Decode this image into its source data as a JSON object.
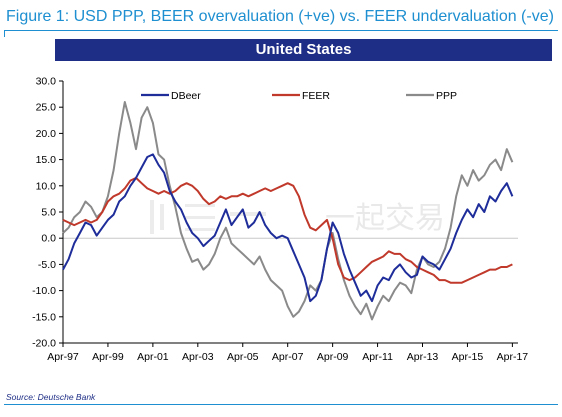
{
  "figure_title": "Figure 1: USD PPP, BEER overvaluation (+ve) vs. FEER undervaluation (-ve)",
  "source": "Source: Deutsche Bank",
  "chart_data": {
    "type": "line",
    "title": "United States",
    "xlabel": "",
    "ylabel": "",
    "ylim": [
      -20,
      30
    ],
    "xlim": [
      1997.25,
      2017.5
    ],
    "yticks": [
      -20.0,
      -15.0,
      -10.0,
      -5.0,
      0.0,
      5.0,
      10.0,
      15.0,
      20.0,
      25.0,
      30.0
    ],
    "ytick_labels": [
      "-20.0",
      "-15.0",
      "-10.0",
      "-5.0",
      "0.0",
      "5.0",
      "10.0",
      "15.0",
      "20.0",
      "25.0",
      "30.0"
    ],
    "xticks": [
      1997.25,
      1999.25,
      2001.25,
      2003.25,
      2005.25,
      2007.25,
      2009.25,
      2011.25,
      2013.25,
      2015.25,
      2017.25
    ],
    "xtick_labels": [
      "Apr-97",
      "Apr-99",
      "Apr-01",
      "Apr-03",
      "Apr-05",
      "Apr-07",
      "Apr-09",
      "Apr-11",
      "Apr-13",
      "Apr-15",
      "Apr-17"
    ],
    "legend_position": "top",
    "colors": {
      "DBeer": "#1e2d9a",
      "FEER": "#c0392b",
      "PPP": "#8a8a8a"
    },
    "series": [
      {
        "name": "DBeer",
        "x": [
          1997.25,
          1997.5,
          1997.75,
          1998.0,
          1998.25,
          1998.5,
          1998.75,
          1999.0,
          1999.25,
          1999.5,
          1999.75,
          2000.0,
          2000.25,
          2000.5,
          2000.75,
          2001.0,
          2001.25,
          2001.5,
          2001.75,
          2002.0,
          2002.25,
          2002.5,
          2002.75,
          2003.0,
          2003.25,
          2003.5,
          2003.75,
          2004.0,
          2004.25,
          2004.5,
          2004.75,
          2005.0,
          2005.25,
          2005.5,
          2005.75,
          2006.0,
          2006.25,
          2006.5,
          2006.75,
          2007.0,
          2007.25,
          2007.5,
          2007.75,
          2008.0,
          2008.25,
          2008.5,
          2008.75,
          2009.0,
          2009.25,
          2009.5,
          2009.75,
          2010.0,
          2010.25,
          2010.5,
          2010.75,
          2011.0,
          2011.25,
          2011.5,
          2011.75,
          2012.0,
          2012.25,
          2012.5,
          2012.75,
          2013.0,
          2013.25,
          2013.5,
          2013.75,
          2014.0,
          2014.25,
          2014.5,
          2014.75,
          2015.0,
          2015.25,
          2015.5,
          2015.75,
          2016.0,
          2016.25,
          2016.5,
          2016.75,
          2017.0,
          2017.25
        ],
        "values": [
          -6.0,
          -4.0,
          -1.0,
          1.0,
          3.0,
          2.5,
          0.5,
          2.0,
          3.5,
          4.5,
          7.0,
          8.0,
          10.0,
          11.5,
          13.5,
          15.5,
          16.0,
          14.0,
          12.5,
          9.0,
          7.0,
          5.5,
          3.0,
          1.0,
          0.0,
          -1.5,
          -0.5,
          0.5,
          3.0,
          5.5,
          2.5,
          4.0,
          5.5,
          2.0,
          3.0,
          5.0,
          2.5,
          1.0,
          0.0,
          0.5,
          0.0,
          -2.5,
          -5.0,
          -7.5,
          -12.0,
          -11.0,
          -8.0,
          -2.0,
          3.0,
          1.0,
          -3.0,
          -6.0,
          -8.5,
          -11.0,
          -10.0,
          -12.0,
          -9.0,
          -7.5,
          -8.0,
          -6.0,
          -5.0,
          -6.5,
          -7.5,
          -7.0,
          -3.5,
          -4.5,
          -5.0,
          -6.0,
          -4.0,
          -2.0,
          1.0,
          3.5,
          5.5,
          4.0,
          6.5,
          5.0,
          8.0,
          7.0,
          9.0,
          10.5,
          8.0
        ]
      },
      {
        "name": "FEER",
        "x": [
          1997.25,
          1997.5,
          1997.75,
          1998.0,
          1998.25,
          1998.5,
          1998.75,
          1999.0,
          1999.25,
          1999.5,
          1999.75,
          2000.0,
          2000.25,
          2000.5,
          2000.75,
          2001.0,
          2001.25,
          2001.5,
          2001.75,
          2002.0,
          2002.25,
          2002.5,
          2002.75,
          2003.0,
          2003.25,
          2003.5,
          2003.75,
          2004.0,
          2004.25,
          2004.5,
          2004.75,
          2005.0,
          2005.25,
          2005.5,
          2005.75,
          2006.0,
          2006.25,
          2006.5,
          2006.75,
          2007.0,
          2007.25,
          2007.5,
          2007.75,
          2008.0,
          2008.25,
          2008.5,
          2008.75,
          2009.0,
          2009.25,
          2009.5,
          2009.75,
          2010.0,
          2010.25,
          2010.5,
          2010.75,
          2011.0,
          2011.25,
          2011.5,
          2011.75,
          2012.0,
          2012.25,
          2012.5,
          2012.75,
          2013.0,
          2013.25,
          2013.5,
          2013.75,
          2014.0,
          2014.25,
          2014.5,
          2014.75,
          2015.0,
          2015.25,
          2015.5,
          2015.75,
          2016.0,
          2016.25,
          2016.5,
          2016.75,
          2017.0,
          2017.25
        ],
        "values": [
          3.5,
          3.0,
          2.5,
          3.0,
          3.5,
          3.0,
          3.5,
          5.0,
          7.0,
          8.0,
          8.5,
          9.5,
          11.0,
          11.5,
          10.5,
          9.5,
          9.0,
          8.5,
          9.0,
          8.5,
          9.0,
          10.0,
          10.5,
          10.0,
          9.0,
          7.5,
          6.5,
          7.0,
          8.0,
          7.5,
          8.0,
          8.0,
          8.5,
          8.0,
          8.5,
          9.0,
          9.5,
          9.0,
          9.5,
          10.0,
          10.5,
          10.0,
          8.0,
          4.5,
          2.0,
          1.5,
          2.5,
          3.5,
          0.0,
          -5.0,
          -7.5,
          -8.0,
          -7.5,
          -6.5,
          -5.5,
          -4.5,
          -4.0,
          -3.5,
          -2.5,
          -3.0,
          -3.0,
          -4.0,
          -4.5,
          -5.5,
          -6.0,
          -6.5,
          -7.0,
          -8.0,
          -8.0,
          -8.5,
          -8.5,
          -8.5,
          -8.0,
          -7.5,
          -7.0,
          -6.5,
          -6.0,
          -6.0,
          -5.5,
          -5.5,
          -5.0
        ]
      },
      {
        "name": "PPP",
        "x": [
          1997.25,
          1997.5,
          1997.75,
          1998.0,
          1998.25,
          1998.5,
          1998.75,
          1999.0,
          1999.25,
          1999.5,
          1999.75,
          2000.0,
          2000.25,
          2000.5,
          2000.75,
          2001.0,
          2001.25,
          2001.5,
          2001.75,
          2002.0,
          2002.25,
          2002.5,
          2002.75,
          2003.0,
          2003.25,
          2003.5,
          2003.75,
          2004.0,
          2004.25,
          2004.5,
          2004.75,
          2005.0,
          2005.25,
          2005.5,
          2005.75,
          2006.0,
          2006.25,
          2006.5,
          2006.75,
          2007.0,
          2007.25,
          2007.5,
          2007.75,
          2008.0,
          2008.25,
          2008.5,
          2008.75,
          2009.0,
          2009.25,
          2009.5,
          2009.75,
          2010.0,
          2010.25,
          2010.5,
          2010.75,
          2011.0,
          2011.25,
          2011.5,
          2011.75,
          2012.0,
          2012.25,
          2012.5,
          2012.75,
          2013.0,
          2013.25,
          2013.5,
          2013.75,
          2014.0,
          2014.25,
          2014.5,
          2014.75,
          2015.0,
          2015.25,
          2015.5,
          2015.75,
          2016.0,
          2016.25,
          2016.5,
          2016.75,
          2017.0,
          2017.25
        ],
        "values": [
          1.0,
          2.0,
          4.0,
          5.0,
          7.0,
          6.0,
          4.0,
          5.0,
          8.0,
          13.0,
          20.0,
          26.0,
          22.0,
          17.0,
          23.0,
          25.0,
          22.0,
          16.0,
          15.0,
          10.0,
          6.0,
          1.0,
          -2.0,
          -4.5,
          -4.0,
          -6.0,
          -5.0,
          -3.0,
          0.0,
          2.0,
          -1.0,
          -2.0,
          -3.0,
          -4.0,
          -5.0,
          -3.5,
          -6.0,
          -8.0,
          -9.0,
          -10.0,
          -13.0,
          -15.0,
          -14.0,
          -12.0,
          -9.0,
          -10.0,
          -8.0,
          -2.0,
          1.0,
          -4.0,
          -8.0,
          -11.0,
          -13.0,
          -14.5,
          -12.5,
          -15.5,
          -13.0,
          -11.0,
          -12.0,
          -10.0,
          -8.5,
          -9.0,
          -10.5,
          -6.0,
          -3.5,
          -5.0,
          -5.5,
          -4.5,
          -2.0,
          2.0,
          8.0,
          12.0,
          10.0,
          13.0,
          11.0,
          12.0,
          14.0,
          15.0,
          13.0,
          17.0,
          14.5
        ]
      }
    ],
    "watermark": "一起交易"
  }
}
